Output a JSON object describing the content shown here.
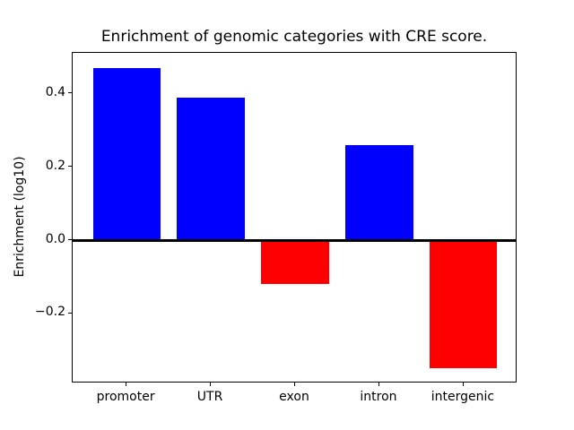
{
  "figure": {
    "background": "#ffffff"
  },
  "chart_data": {
    "type": "bar",
    "title": "Enrichment of genomic categories with CRE score.",
    "xlabel": "",
    "ylabel": "Enrichment (log10)",
    "categories": [
      "promoter",
      "UTR",
      "exon",
      "intron",
      "intergenic"
    ],
    "values": [
      0.47,
      0.39,
      -0.12,
      0.26,
      -0.35
    ],
    "positive_color": "#0000ff",
    "negative_color": "#ff0000",
    "ylim": [
      -0.391,
      0.511
    ],
    "yticks": [
      0.4,
      0.2,
      0.0,
      -0.2
    ],
    "ytick_labels": [
      "0.4",
      "0.2",
      "0.0",
      "−0.2"
    ],
    "bar_width_fraction": 0.8,
    "zero_line": true,
    "grid": false,
    "legend_position": "none"
  }
}
